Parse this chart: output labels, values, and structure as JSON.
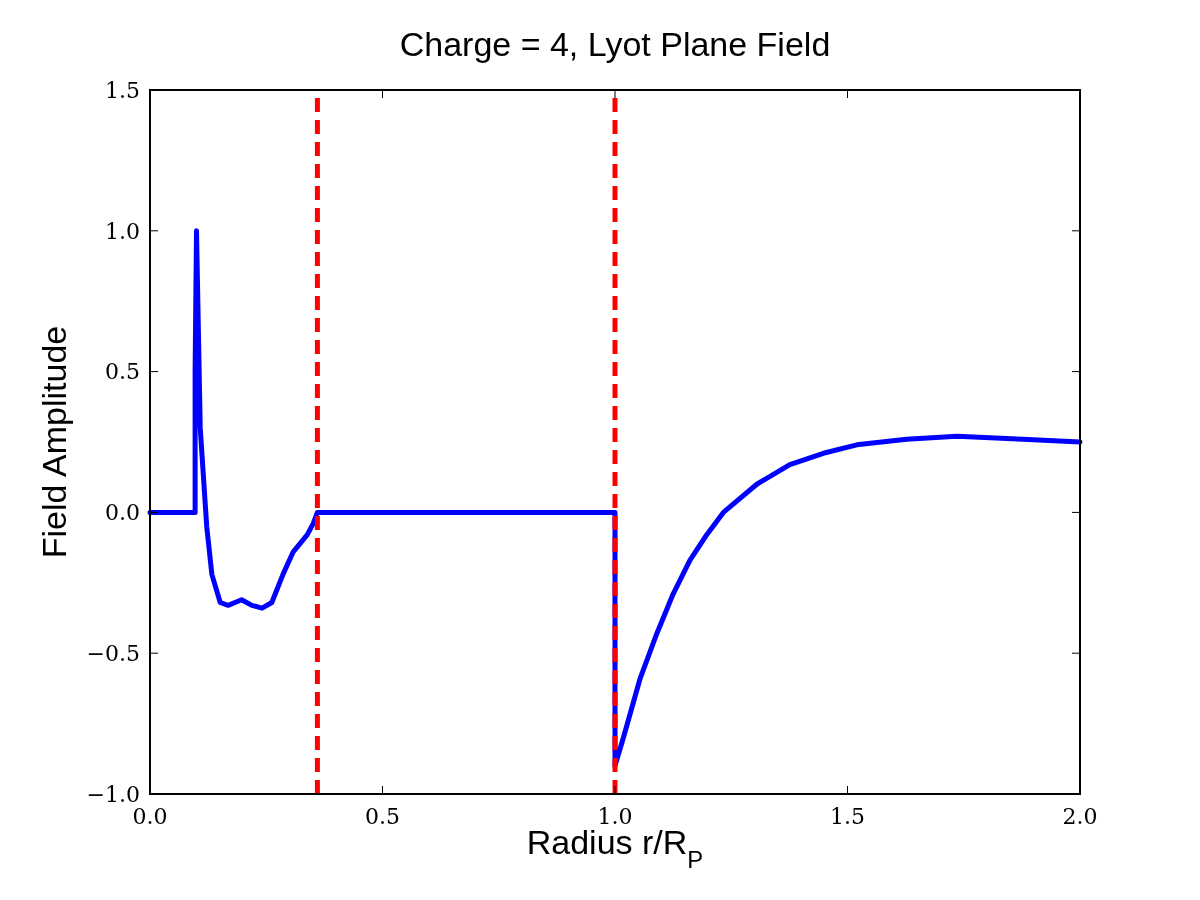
{
  "chart_data": {
    "type": "line",
    "title": "Charge = 4, Lyot Plane Field",
    "xlabel": "Radius r/R$_{P}$",
    "ylabel": "Field Amplitude",
    "xlim": [
      0,
      2
    ],
    "xticks": [
      {
        "value": 0,
        "label": "0.0"
      },
      0.5,
      {
        "value": 1,
        "label": "1.0"
      },
      1.5,
      {
        "value": 2,
        "label": "2.0"
      }
    ],
    "ylim": [
      -1,
      1.5
    ],
    "yticks": [
      {
        "value": -1,
        "label": "−1.0"
      },
      {
        "value": -0.5,
        "label": "−0.5"
      },
      {
        "value": 0,
        "label": "0.0"
      },
      0.5,
      {
        "value": 1,
        "label": "1.0"
      },
      1.5
    ],
    "grid": false,
    "line_style": "solid",
    "marker": "none",
    "series": [
      {
        "color": "#0000ff",
        "x": [
          0,
          0.097,
          0.097,
          0.1,
          0.108,
          0.122,
          0.133,
          0.151,
          0.168,
          0.197,
          0.219,
          0.241,
          0.262,
          0.286,
          0.308,
          0.338,
          0.351,
          0.36,
          0.5,
          0.8,
          1.0,
          1.0,
          1.018,
          1.054,
          1.09,
          1.125,
          1.161,
          1.197,
          1.233,
          1.305,
          1.376,
          1.448,
          1.52,
          1.627,
          1.735,
          1.877,
          2.0
        ],
        "values": [
          0,
          0,
          0.5,
          1.0,
          0.3,
          -0.05,
          -0.22,
          -0.32,
          -0.33,
          -0.31,
          -0.33,
          -0.34,
          -0.32,
          -0.22,
          -0.14,
          -0.08,
          -0.04,
          0,
          0,
          0,
          0,
          -0.9,
          -0.8,
          -0.59,
          -0.43,
          -0.29,
          -0.17,
          -0.08,
          0,
          0.1,
          0.17,
          0.21,
          0.24,
          0.26,
          0.27,
          0.26,
          0.25
        ]
      }
    ],
    "ref_lines": [
      {
        "axis": "x",
        "value": 0.36,
        "color": "#ff0000",
        "line_style": "dashed"
      },
      {
        "axis": "x",
        "value": 1.0,
        "color": "#ff0000",
        "line_style": "dashed"
      }
    ]
  }
}
